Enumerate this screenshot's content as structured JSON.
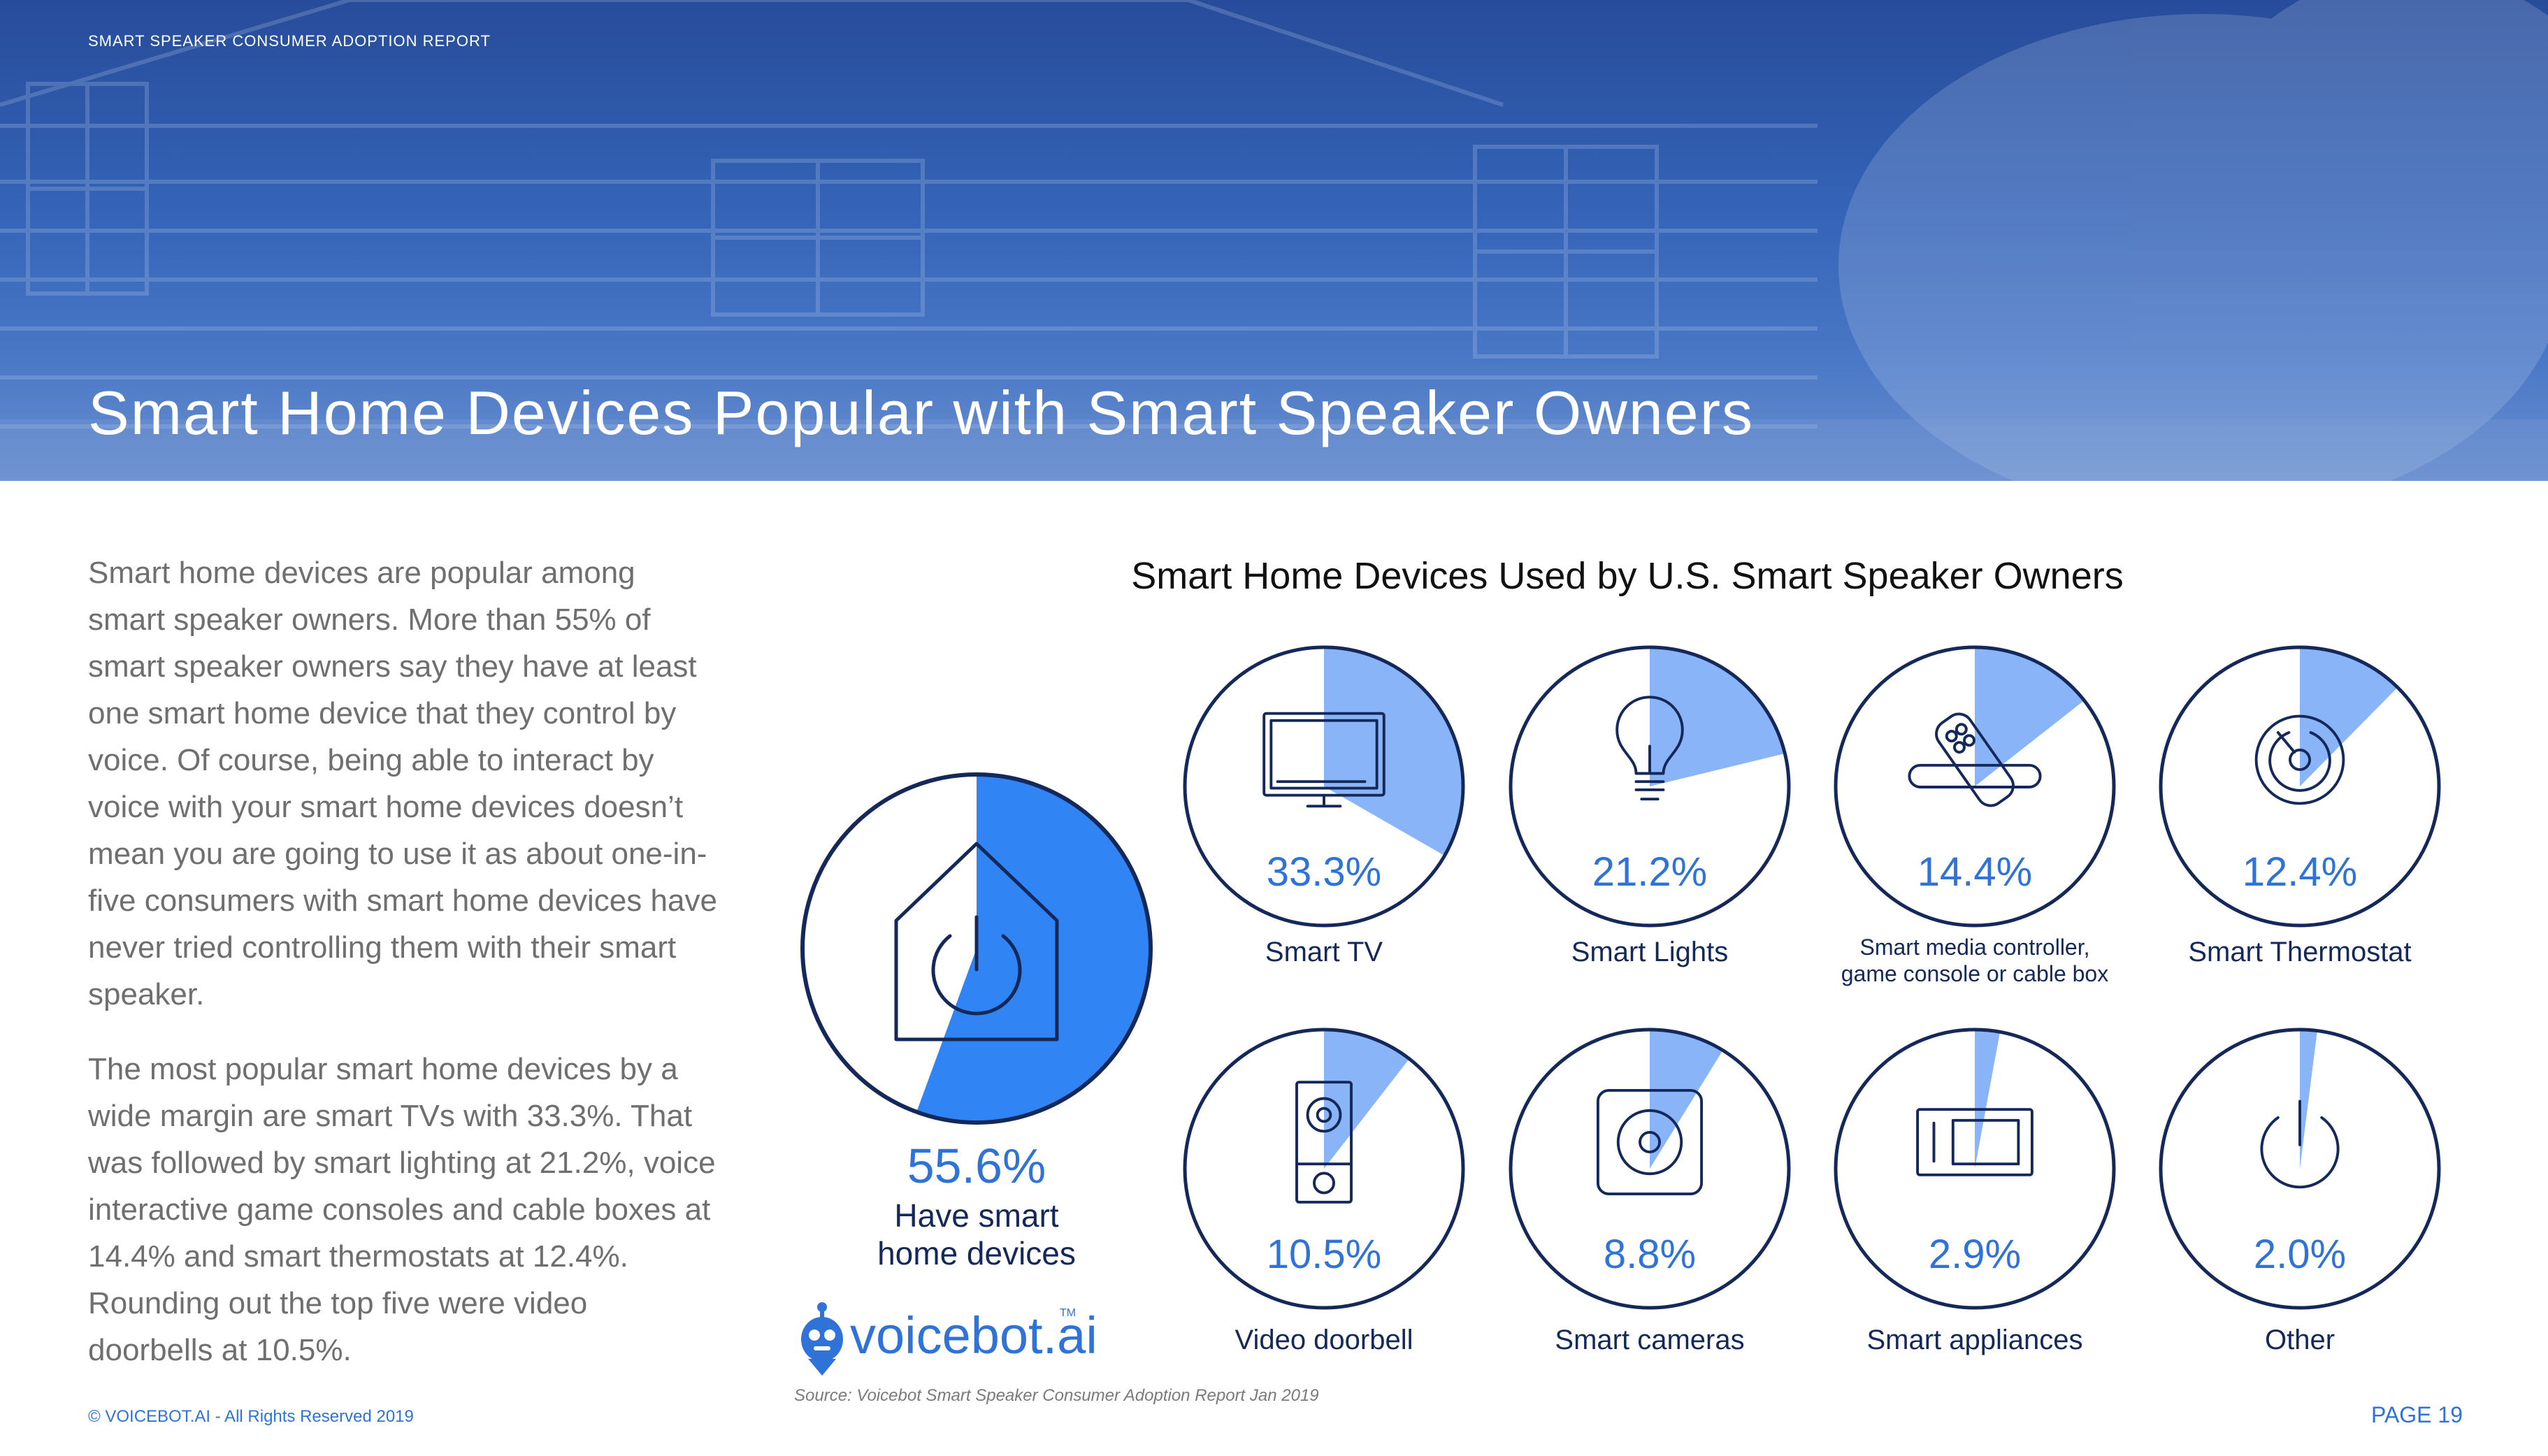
{
  "header": {
    "report_label": "SMART SPEAKER CONSUMER ADOPTION REPORT",
    "title": "Smart Home Devices Popular with Smart Speaker Owners"
  },
  "body": {
    "paragraph1": "Smart home devices are popular among smart speaker owners. More than 55% of smart speaker owners say they have at least one smart home device that they control by voice. Of course, being able to interact by voice with your smart home devices doesn’t mean you are going to use it as about one-in-five consumers with smart home devices have never tried controlling them with their smart speaker.",
    "paragraph2": "The most popular smart home devices by a wide margin are smart TVs with 33.3%. That was followed by smart lighting at 21.2%, voice interactive game consoles and cable boxes at 14.4% and smart thermostats at 12.4%. Rounding out the top five were video doorbells at 10.5%."
  },
  "chart_data": {
    "type": "pie",
    "title": "Smart Home Devices Used by U.S. Smart Speaker Owners",
    "unit": "%",
    "summary": {
      "label": "Have smart home devices",
      "label_lines": [
        "Have smart",
        "home devices"
      ],
      "value": 55.6,
      "value_label": "55.6%",
      "icon": "house-power-icon"
    },
    "categories": [
      {
        "label": "Smart TV",
        "label_lines": [
          "Smart TV"
        ],
        "value": 33.3,
        "value_label": "33.3%",
        "icon": "tv-icon"
      },
      {
        "label": "Smart Lights",
        "label_lines": [
          "Smart Lights"
        ],
        "value": 21.2,
        "value_label": "21.2%",
        "icon": "lightbulb-icon"
      },
      {
        "label": "Smart media controller, game console or cable box",
        "label_lines": [
          "Smart media controller,",
          "game console or cable box"
        ],
        "value": 14.4,
        "value_label": "14.4%",
        "icon": "remote-icon"
      },
      {
        "label": "Smart Thermostat",
        "label_lines": [
          "Smart Thermostat"
        ],
        "value": 12.4,
        "value_label": "12.4%",
        "icon": "thermostat-icon"
      },
      {
        "label": "Video doorbell",
        "label_lines": [
          "Video doorbell"
        ],
        "value": 10.5,
        "value_label": "10.5%",
        "icon": "doorbell-icon"
      },
      {
        "label": "Smart cameras",
        "label_lines": [
          "Smart cameras"
        ],
        "value": 8.8,
        "value_label": "8.8%",
        "icon": "camera-icon"
      },
      {
        "label": "Smart appliances",
        "label_lines": [
          "Smart appliances"
        ],
        "value": 2.9,
        "value_label": "2.9%",
        "icon": "appliance-icon"
      },
      {
        "label": "Other",
        "label_lines": [
          "Other"
        ],
        "value": 2.0,
        "value_label": "2.0%",
        "icon": "power-icon"
      }
    ],
    "colors": {
      "navy": "#14285a",
      "fill_light": "#8ab4f8",
      "fill_strong": "#3184f4",
      "accent_text": "#2f73d8"
    }
  },
  "logo": {
    "text": "voicebot.ai",
    "tm": "TM"
  },
  "source": "Source: Voicebot Smart Speaker Consumer Adoption Report Jan 2019",
  "footer": {
    "copyright": "© VOICEBOT.AI - All Rights Reserved 2019",
    "page": "PAGE 19"
  }
}
